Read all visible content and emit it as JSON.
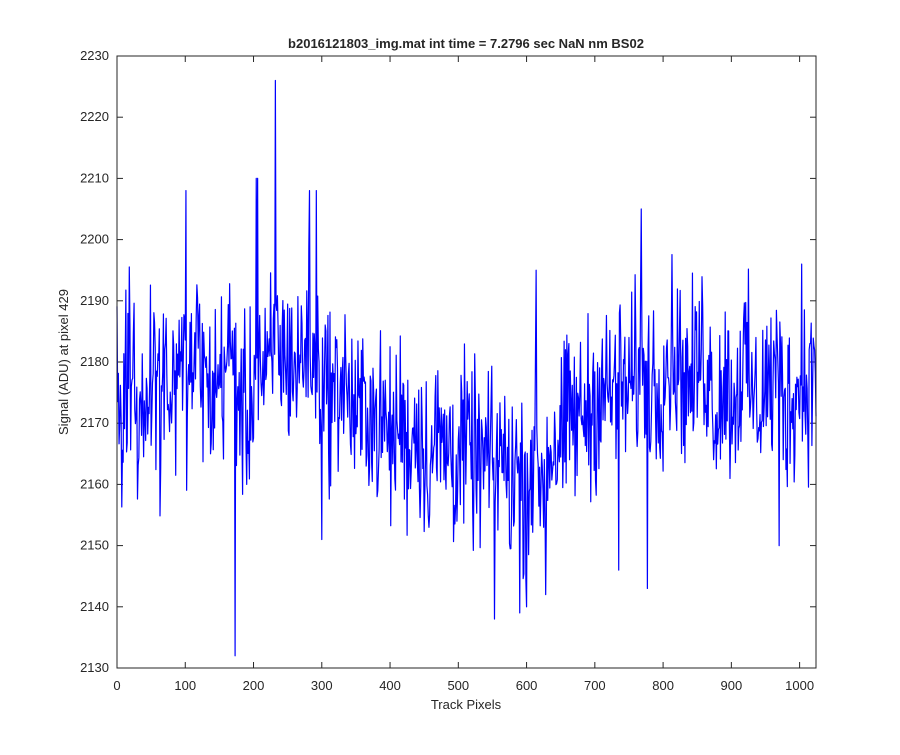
{
  "chart_data": {
    "type": "line",
    "title": "b2016121803_img.mat int time = 7.2796 sec  NaN nm BS02",
    "xlabel": "Track Pixels",
    "ylabel": "Signal (ADU) at pixel 429",
    "xlim": [
      0,
      1024
    ],
    "ylim": [
      2130,
      2230
    ],
    "xticks": [
      "0",
      "100",
      "200",
      "300",
      "400",
      "500",
      "600",
      "700",
      "800",
      "900",
      "1000"
    ],
    "yticks": [
      "2130",
      "2140",
      "2150",
      "2160",
      "2170",
      "2180",
      "2190",
      "2200",
      "2210",
      "2220",
      "2230"
    ],
    "grid": false,
    "legend": "none",
    "line_color": "#0000ff",
    "series": [
      {
        "x_start": 0,
        "x_step": 8,
        "values": [
          2178,
          2170,
          2182,
          2176,
          2168,
          2175,
          2180,
          2174,
          2172,
          2178,
          2176,
          2171,
          2179,
          2176,
          2180,
          2183,
          2177,
          2174,
          2176,
          2178,
          2180,
          2182,
          2176,
          2172,
          2170,
          2178,
          2181,
          2175,
          2179,
          2185,
          2182,
          2180,
          2181,
          2178,
          2182,
          2184,
          2179,
          2180,
          2177,
          2175,
          2174,
          2178,
          2176,
          2173,
          2170,
          2172,
          2174,
          2171,
          2169,
          2170,
          2167,
          2168,
          2172,
          2166,
          2168,
          2170,
          2166,
          2164,
          2166,
          2168,
          2165,
          2167,
          2163,
          2166,
          2166,
          2165,
          2164,
          2163,
          2165,
          2161,
          2167,
          2163,
          2160,
          2164,
          2162,
          2159,
          2165,
          2163,
          2160,
          2165,
          2167,
          2166,
          2168,
          2172,
          2170,
          2171,
          2173,
          2172,
          2175,
          2176,
          2174,
          2176,
          2177,
          2175,
          2176,
          2178,
          2180,
          2178,
          2177,
          2176,
          2179,
          2181,
          2182,
          2180,
          2177,
          2176,
          2178,
          2182,
          2180,
          2175,
          2172,
          2178,
          2176,
          2173,
          2178,
          2180,
          2176,
          2172,
          2175,
          2177,
          2176,
          2180,
          2174,
          2172,
          2176,
          2174,
          2178,
          2176,
          2180
        ],
        "spikes": [
          {
            "x": 101,
            "y": 2208
          },
          {
            "x": 173,
            "y": 2132
          },
          {
            "x": 204,
            "y": 2210
          },
          {
            "x": 206,
            "y": 2210
          },
          {
            "x": 232,
            "y": 2226
          },
          {
            "x": 282,
            "y": 2208
          },
          {
            "x": 292,
            "y": 2208
          },
          {
            "x": 300,
            "y": 2151
          },
          {
            "x": 553,
            "y": 2138
          },
          {
            "x": 590,
            "y": 2139
          },
          {
            "x": 600,
            "y": 2140
          },
          {
            "x": 614,
            "y": 2195
          },
          {
            "x": 628,
            "y": 2142
          },
          {
            "x": 735,
            "y": 2146
          },
          {
            "x": 768,
            "y": 2205
          },
          {
            "x": 777,
            "y": 2143
          },
          {
            "x": 970,
            "y": 2150
          },
          {
            "x": 1003,
            "y": 2196
          }
        ],
        "noise_amplitude": 7,
        "seed": 429
      }
    ]
  }
}
